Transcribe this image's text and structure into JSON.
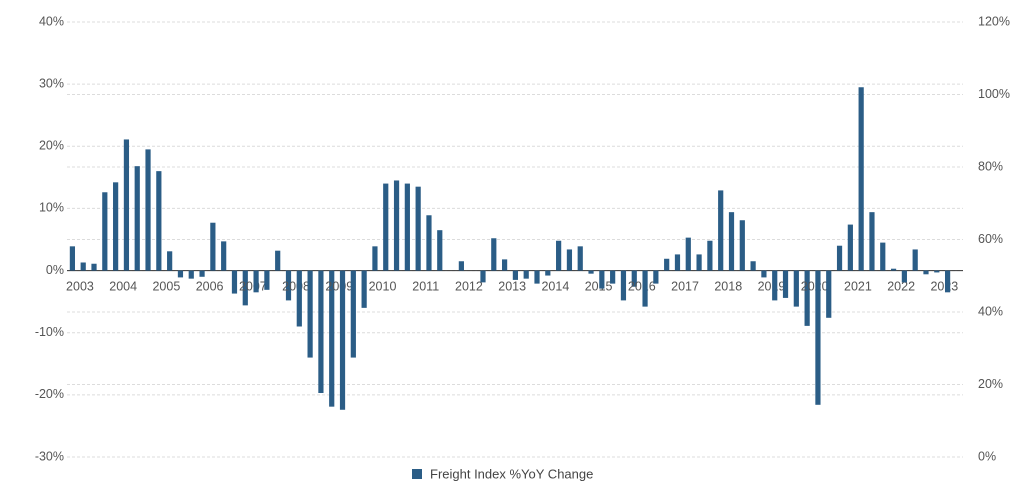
{
  "chart_data": {
    "type": "bar",
    "categories": [
      "2003",
      null,
      null,
      null,
      "2004",
      null,
      null,
      null,
      "2005",
      null,
      null,
      null,
      "2006",
      null,
      null,
      null,
      "2007",
      null,
      null,
      null,
      "2008",
      null,
      null,
      null,
      "2009",
      null,
      null,
      null,
      "2010",
      null,
      null,
      null,
      "2011",
      null,
      null,
      null,
      "2012",
      null,
      null,
      null,
      "2013",
      null,
      null,
      null,
      "2014",
      null,
      null,
      null,
      "2015",
      null,
      null,
      null,
      "2016",
      null,
      null,
      null,
      "2017",
      null,
      null,
      null,
      "2018",
      null,
      null,
      null,
      "2019",
      null,
      null,
      null,
      "2020",
      null,
      null,
      null,
      "2021",
      null,
      null,
      null,
      "2022",
      null,
      null,
      null,
      "2023",
      null
    ],
    "series": [
      {
        "name": "Freight Index %YoY Change",
        "color": "#2b5d86",
        "values": [
          3.9,
          1.3,
          1.1,
          12.6,
          14.2,
          21.1,
          16.8,
          19.5,
          16.0,
          3.1,
          -1.1,
          -1.3,
          -1.0,
          7.7,
          4.7,
          -3.7,
          -5.6,
          -3.5,
          -3.1,
          3.2,
          -4.8,
          -9.0,
          -14.0,
          -19.7,
          -21.9,
          -22.4,
          -14.0,
          -6.0,
          3.9,
          14.0,
          14.5,
          14.0,
          13.5,
          8.9,
          6.5,
          0,
          1.5,
          0,
          -1.9,
          5.2,
          1.8,
          -1.5,
          -1.3,
          -2.1,
          -0.8,
          4.8,
          3.4,
          3.9,
          -0.5,
          -2.9,
          -2.1,
          -4.8,
          -2.6,
          -5.8,
          -2.1,
          1.9,
          2.6,
          5.3,
          2.6,
          4.8,
          12.9,
          9.4,
          8.1,
          1.5,
          -1.1,
          -4.8,
          -4.4,
          -5.8,
          -8.9,
          -21.6,
          -7.6,
          4.0,
          7.4,
          29.5,
          9.4,
          4.5,
          0.3,
          -1.9,
          3.4,
          -0.6,
          -0.3,
          -3.5
        ]
      }
    ],
    "ylim": [
      -30,
      40
    ],
    "yticks": [
      {
        "value": -30,
        "label": "-30%"
      },
      {
        "value": -20,
        "label": "-20%"
      },
      {
        "value": -10,
        "label": "-10%"
      },
      {
        "value": 0,
        "label": "0%"
      },
      {
        "value": 10,
        "label": "10%"
      },
      {
        "value": 20,
        "label": "20%"
      },
      {
        "value": 30,
        "label": "30%"
      },
      {
        "value": 40,
        "label": "40%"
      }
    ],
    "y2lim": [
      0,
      120
    ],
    "y2ticks": [
      {
        "value": 0,
        "label": "0%"
      },
      {
        "value": 20,
        "label": "20%"
      },
      {
        "value": 40,
        "label": "40%"
      },
      {
        "value": 60,
        "label": "60%"
      },
      {
        "value": 80,
        "label": "80%"
      },
      {
        "value": 100,
        "label": "100%"
      },
      {
        "value": 120,
        "label": "120%"
      }
    ],
    "grid": true,
    "legend": "bottom"
  }
}
